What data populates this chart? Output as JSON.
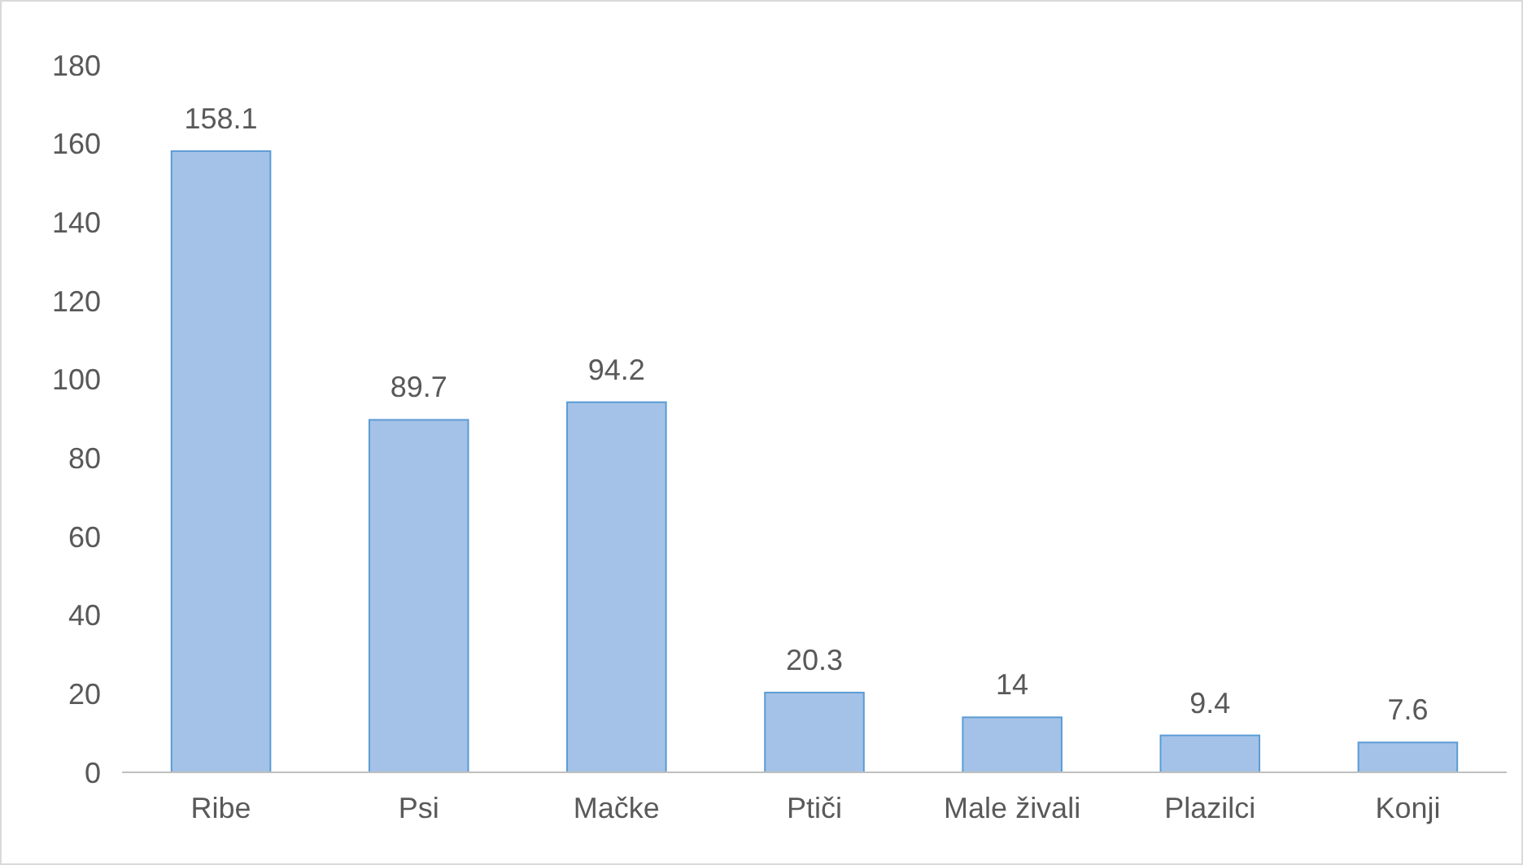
{
  "chart_data": {
    "type": "bar",
    "categories": [
      "Ribe",
      "Psi",
      "Mačke",
      "Ptiči",
      "Male živali",
      "Plazilci",
      "Konji"
    ],
    "values": [
      158.1,
      89.7,
      94.2,
      20.3,
      14,
      9.4,
      7.6
    ],
    "color": "#a4c2e8",
    "ylim": [
      0,
      180
    ],
    "yticks": [
      0,
      20,
      40,
      60,
      80,
      100,
      120,
      140,
      160,
      180
    ],
    "grid": false,
    "data_labels": true
  }
}
